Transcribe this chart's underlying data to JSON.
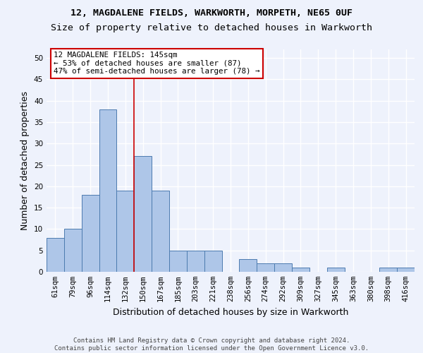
{
  "title1": "12, MAGDALENE FIELDS, WARKWORTH, MORPETH, NE65 0UF",
  "title2": "Size of property relative to detached houses in Warkworth",
  "xlabel": "Distribution of detached houses by size in Warkworth",
  "ylabel": "Number of detached properties",
  "bar_labels": [
    "61sqm",
    "79sqm",
    "96sqm",
    "114sqm",
    "132sqm",
    "150sqm",
    "167sqm",
    "185sqm",
    "203sqm",
    "221sqm",
    "238sqm",
    "256sqm",
    "274sqm",
    "292sqm",
    "309sqm",
    "327sqm",
    "345sqm",
    "363sqm",
    "380sqm",
    "398sqm",
    "416sqm"
  ],
  "bar_values": [
    8,
    10,
    18,
    38,
    19,
    27,
    19,
    5,
    5,
    5,
    0,
    3,
    2,
    2,
    1,
    0,
    1,
    0,
    0,
    1,
    1
  ],
  "bar_color": "#aec6e8",
  "bar_edge_color": "#4c7baf",
  "vline_x_index": 4.5,
  "vline_color": "#cc0000",
  "annotation_line1": "12 MAGDALENE FIELDS: 145sqm",
  "annotation_line2": "← 53% of detached houses are smaller (87)",
  "annotation_line3": "47% of semi-detached houses are larger (78) →",
  "annotation_box_color": "white",
  "annotation_box_edge": "#cc0000",
  "ylim": [
    0,
    52
  ],
  "yticks": [
    0,
    5,
    10,
    15,
    20,
    25,
    30,
    35,
    40,
    45,
    50
  ],
  "footnote": "Contains HM Land Registry data © Crown copyright and database right 2024.\nContains public sector information licensed under the Open Government Licence v3.0.",
  "bg_color": "#eef2fc",
  "grid_color": "#ffffff",
  "title1_fontsize": 9.5,
  "title2_fontsize": 9.5,
  "xlabel_fontsize": 9,
  "ylabel_fontsize": 9,
  "tick_fontsize": 7.5,
  "footnote_fontsize": 6.5,
  "annotation_fontsize": 7.8
}
